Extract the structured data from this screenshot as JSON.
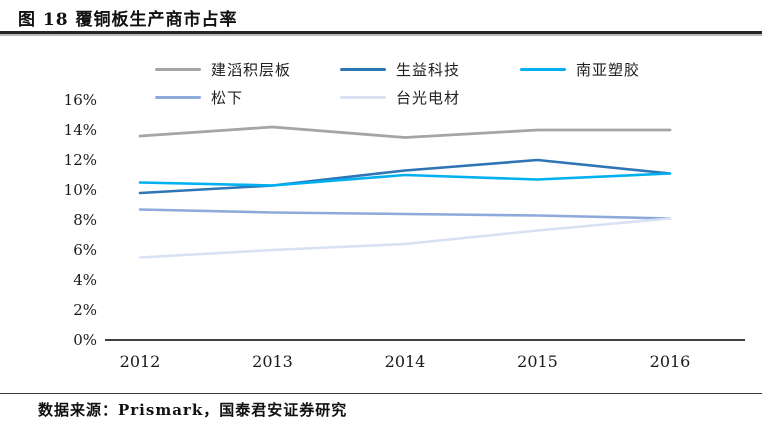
{
  "title": "图 18  覆铜板生产商市占率",
  "source_note": "数据来源：Prismark，国泰君安证券研究",
  "colors": {
    "title_rule": "#262626",
    "footer_rule": "#3a3a3a",
    "axis_line": "#000000",
    "text": "#1a1a1a"
  },
  "chart_data": {
    "type": "line",
    "title": "覆铜板生产商市占率",
    "categories": [
      "2012",
      "2013",
      "2014",
      "2015",
      "2016"
    ],
    "series": [
      {
        "name": "建滔积层板",
        "color": "#a5a5a5",
        "values": [
          13.6,
          14.2,
          13.5,
          14.0,
          14.0
        ]
      },
      {
        "name": "生益科技",
        "color": "#2e75b6",
        "values": [
          9.8,
          10.3,
          11.3,
          12.0,
          11.1
        ]
      },
      {
        "name": "南亚塑胶",
        "color": "#00b0f0",
        "values": [
          10.5,
          10.3,
          11.0,
          10.7,
          11.1
        ]
      },
      {
        "name": "松下",
        "color": "#8eaadb",
        "values": [
          8.7,
          8.5,
          8.4,
          8.3,
          8.1
        ]
      },
      {
        "name": "台光电材",
        "color": "#d9e2f3",
        "values": [
          5.5,
          6.0,
          6.4,
          7.3,
          8.1
        ]
      }
    ],
    "ylim": [
      0,
      16
    ],
    "ytick_step": 2,
    "ytick_suffix": "%",
    "grid": false,
    "legend_position": "top"
  }
}
